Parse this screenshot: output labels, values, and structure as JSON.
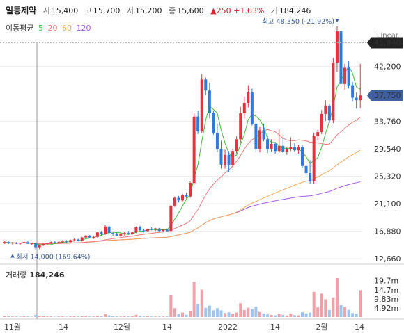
{
  "header": {
    "name": "일동제약",
    "open_label": "시",
    "open": "15,400",
    "high_label": "고",
    "high": "15,700",
    "low_label": "저",
    "low": "15,200",
    "close_label": "종",
    "close": "15,600",
    "change": "▲250 +1.63%",
    "volume_label": "거",
    "volume": "184,246"
  },
  "ma_legend": {
    "title": "이동평균",
    "periods": [
      "5",
      "20",
      "60",
      "120"
    ]
  },
  "scale_mode": "Linear",
  "volume_panel": {
    "label": "거래량",
    "value": "184,246"
  },
  "colors": {
    "up": "#e5323c",
    "down": "#2d7be0",
    "ma5": "#3cbf3c",
    "ma20": "#f07a7a",
    "ma60": "#f5a95a",
    "ma120": "#a55ce0",
    "vol_up": "#f0a0a6",
    "vol_down": "#9ec4ef",
    "badge_dark": "#222222",
    "badge_blue": "#3f5f9f"
  },
  "chart_data": {
    "type": "candlestick",
    "x_tick_labels": [
      "11월",
      "14",
      "12월",
      "14",
      "2022",
      "14",
      "2월",
      "14"
    ],
    "y_tick_labels": [
      "42,200",
      "33,760",
      "29,540",
      "25,320",
      "21,100",
      "16,880",
      "12,660"
    ],
    "y_range": [
      12660,
      46000
    ],
    "volume_tick_labels": [
      "19.7m",
      "14.7m",
      "9.83m",
      "4.92m"
    ],
    "volume_range": [
      0,
      21.0
    ],
    "price_badges": {
      "high_line": "45,840",
      "current": "37,750"
    },
    "annotations": {
      "max": "최고 48,350 (-21.92%)",
      "min": "최저 14,000 (169.64%)"
    },
    "ohlc": [
      [
        15000,
        15400,
        14900,
        15200
      ],
      [
        15200,
        15300,
        14900,
        15000
      ],
      [
        15000,
        15200,
        14800,
        15100
      ],
      [
        15100,
        15200,
        14900,
        14950
      ],
      [
        14950,
        15100,
        14800,
        15050
      ],
      [
        15050,
        15300,
        14950,
        15200
      ],
      [
        15200,
        15300,
        14900,
        14950
      ],
      [
        14950,
        15100,
        14800,
        15000
      ],
      [
        15000,
        15100,
        14000,
        14300
      ],
      [
        14300,
        14800,
        14100,
        14700
      ],
      [
        14700,
        15000,
        14600,
        14900
      ],
      [
        14900,
        15100,
        14800,
        15000
      ],
      [
        15000,
        15300,
        14900,
        15200
      ],
      [
        15200,
        15400,
        15000,
        15100
      ],
      [
        15100,
        15300,
        15000,
        15250
      ],
      [
        15250,
        15500,
        15100,
        15300
      ],
      [
        15300,
        15500,
        15100,
        15200
      ],
      [
        15200,
        15600,
        15100,
        15500
      ],
      [
        15500,
        15800,
        15300,
        15600
      ],
      [
        15600,
        15700,
        15300,
        15400
      ],
      [
        15400,
        16000,
        15300,
        15900
      ],
      [
        15900,
        16300,
        15700,
        16200
      ],
      [
        16200,
        16300,
        15800,
        15900
      ],
      [
        15900,
        16100,
        15700,
        16000
      ],
      [
        16000,
        16800,
        15900,
        16700
      ],
      [
        16700,
        16900,
        16200,
        16400
      ],
      [
        16400,
        17800,
        16300,
        17600
      ],
      [
        17600,
        17800,
        16500,
        16600
      ],
      [
        16600,
        16800,
        16200,
        16400
      ],
      [
        16400,
        16700,
        16100,
        16200
      ],
      [
        16200,
        16600,
        16000,
        16400
      ],
      [
        16400,
        16800,
        16200,
        16600
      ],
      [
        16600,
        16900,
        16300,
        16400
      ],
      [
        16400,
        16800,
        16300,
        16700
      ],
      [
        16700,
        17600,
        16600,
        17500
      ],
      [
        17500,
        17700,
        16900,
        17000
      ],
      [
        17000,
        17200,
        16700,
        16900
      ],
      [
        16900,
        17300,
        16800,
        17200
      ],
      [
        17200,
        17500,
        17000,
        17100
      ],
      [
        17100,
        17400,
        16900,
        17300
      ],
      [
        17300,
        17400,
        16800,
        16900
      ],
      [
        16900,
        17200,
        16700,
        17100
      ],
      [
        17100,
        17300,
        16800,
        16900
      ],
      [
        16900,
        20900,
        16800,
        20800
      ],
      [
        20800,
        22200,
        20600,
        22000
      ],
      [
        22000,
        22300,
        21300,
        21600
      ],
      [
        21600,
        22600,
        21400,
        22400
      ],
      [
        22400,
        22800,
        21900,
        22200
      ],
      [
        22200,
        24500,
        22000,
        24300
      ],
      [
        24300,
        35000,
        24000,
        34500
      ],
      [
        34500,
        35400,
        31800,
        32200
      ],
      [
        32200,
        41000,
        32000,
        40200
      ],
      [
        40200,
        40500,
        37800,
        38500
      ],
      [
        38500,
        39700,
        34200,
        35000
      ],
      [
        35000,
        35400,
        31700,
        32000
      ],
      [
        32000,
        33400,
        29000,
        29500
      ],
      [
        29500,
        30800,
        26500,
        27100
      ],
      [
        27100,
        29400,
        26500,
        28600
      ],
      [
        28600,
        29200,
        25900,
        27000
      ],
      [
        27000,
        29500,
        26700,
        29200
      ],
      [
        29200,
        31500,
        28800,
        31000
      ],
      [
        31000,
        36000,
        30500,
        35000
      ],
      [
        35000,
        37600,
        34200,
        36600
      ],
      [
        36600,
        39300,
        35900,
        38200
      ],
      [
        38200,
        38800,
        33100,
        33400
      ],
      [
        33400,
        35200,
        29000,
        29500
      ],
      [
        29500,
        33000,
        29000,
        32400
      ],
      [
        32400,
        33400,
        30700,
        31000
      ],
      [
        31000,
        31600,
        28900,
        29500
      ],
      [
        29500,
        31000,
        29100,
        30300
      ],
      [
        30300,
        30600,
        28800,
        29200
      ],
      [
        29200,
        32600,
        28900,
        30000
      ],
      [
        30000,
        31200,
        28900,
        29100
      ],
      [
        29100,
        29800,
        28600,
        29500
      ],
      [
        29500,
        31300,
        29200,
        29800
      ],
      [
        29800,
        30400,
        29100,
        29300
      ],
      [
        29300,
        30200,
        28800,
        29800
      ],
      [
        29800,
        30100,
        26600,
        26900
      ],
      [
        26900,
        28200,
        25200,
        25800
      ],
      [
        25800,
        27800,
        24200,
        24600
      ],
      [
        24600,
        32000,
        24200,
        31500
      ],
      [
        31500,
        32500,
        30900,
        32100
      ],
      [
        32100,
        35500,
        31800,
        34900
      ],
      [
        34900,
        37000,
        33800,
        36200
      ],
      [
        36200,
        36500,
        33500,
        33900
      ],
      [
        33900,
        43500,
        33500,
        42800
      ],
      [
        42800,
        48350,
        41300,
        47600
      ],
      [
        47600,
        48100,
        38800,
        39500
      ],
      [
        39500,
        42600,
        38600,
        42000
      ],
      [
        42000,
        43000,
        38800,
        39300
      ],
      [
        39300,
        39800,
        36800,
        37400
      ],
      [
        37400,
        38200,
        35700,
        37000
      ],
      [
        37000,
        42600,
        35800,
        37750
      ]
    ],
    "volume": [
      0.6,
      0.4,
      0.3,
      0.3,
      0.2,
      0.4,
      0.3,
      0.2,
      1.1,
      0.5,
      0.4,
      0.3,
      0.3,
      0.2,
      0.3,
      0.3,
      0.2,
      0.3,
      0.4,
      0.3,
      0.4,
      0.5,
      0.3,
      0.3,
      0.6,
      0.4,
      1.6,
      0.9,
      0.4,
      0.3,
      0.3,
      0.4,
      0.3,
      0.4,
      1.2,
      0.7,
      0.3,
      0.4,
      0.3,
      0.3,
      0.3,
      0.3,
      0.3,
      12.0,
      4.8,
      1.6,
      2.4,
      1.2,
      3.0,
      19.0,
      7.0,
      14.8,
      4.9,
      6.2,
      3.6,
      4.8,
      3.6,
      2.2,
      2.5,
      1.8,
      2.4,
      7.4,
      3.8,
      5.0,
      4.5,
      5.6,
      2.7,
      1.9,
      1.4,
      1.1,
      0.9,
      1.7,
      1.2,
      0.8,
      1.9,
      1.0,
      0.9,
      2.6,
      2.0,
      2.4,
      13.6,
      5.2,
      12.6,
      9.6,
      3.8,
      10.6,
      21.0,
      6.4,
      5.5,
      3.9,
      2.1,
      1.8,
      14.5
    ]
  }
}
